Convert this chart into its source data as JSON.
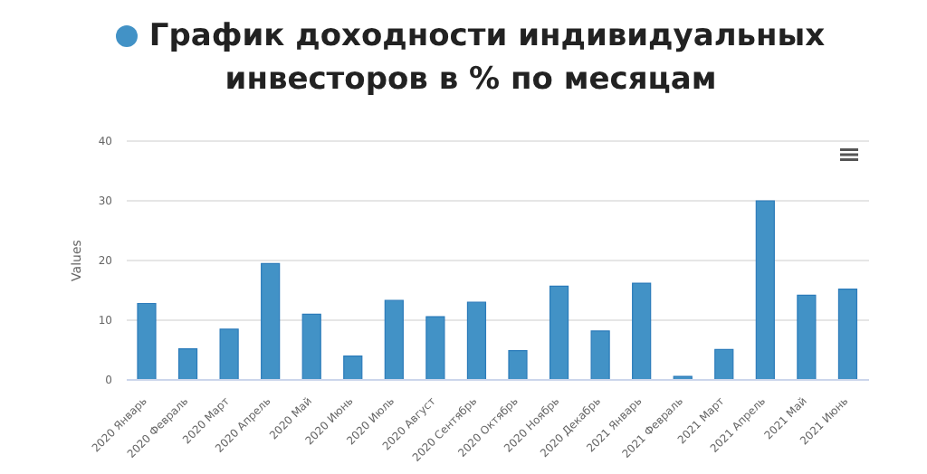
{
  "chart_data": {
    "type": "bar",
    "title": "График доходности индивидуальных инвесторов в % по месяцам",
    "ylabel": "Values",
    "categories": [
      "2020 Январь",
      "2020 Февраль",
      "2020 Март",
      "2020 Апрель",
      "2020 Май",
      "2020 Июнь",
      "2020 Июль",
      "2020 Август",
      "2020 Сентябрь",
      "2020 Октябрь",
      "2020 Ноябрь",
      "2020 Декабрь",
      "2021 Январь",
      "2021 Февраль",
      "2021 Март",
      "2021 Апрель",
      "2021 Май",
      "2021 Июнь"
    ],
    "values": [
      12.8,
      5.2,
      8.5,
      19.5,
      11.0,
      4.0,
      13.3,
      10.6,
      13.0,
      4.9,
      15.7,
      8.2,
      16.2,
      0.6,
      5.1,
      30.0,
      14.2,
      15.2
    ],
    "color": "#4292c6",
    "ylim": [
      0,
      40
    ],
    "yticks": [
      0,
      10,
      20,
      30,
      40
    ],
    "grid": "y"
  }
}
